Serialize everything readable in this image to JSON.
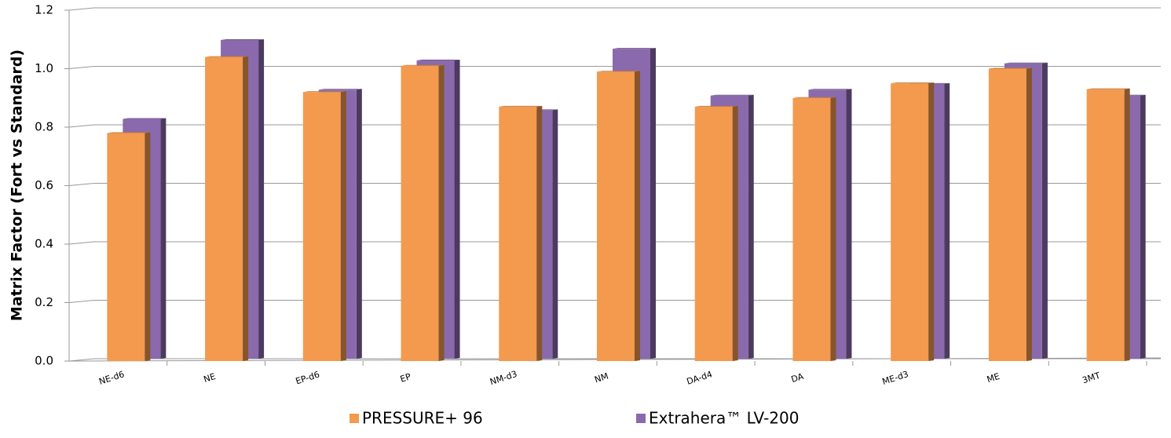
{
  "chart_data": {
    "type": "bar",
    "y_label": "Matrix Factor (Fort vs Standard)",
    "categories": [
      "NE-d6",
      "NE",
      "EP-d6",
      "EP",
      "NM-d3",
      "NM",
      "DA-d4",
      "DA",
      "ME-d3",
      "ME",
      "3MT"
    ],
    "series": [
      {
        "name": "PRESSURE+ 96",
        "color": "#f39a4f",
        "values": [
          0.78,
          1.04,
          0.92,
          1.01,
          0.87,
          0.99,
          0.87,
          0.9,
          0.95,
          1.0,
          0.93
        ]
      },
      {
        "name": "Extrahera™ LV-200",
        "color": "#8a6aac",
        "values": [
          0.82,
          1.09,
          0.92,
          1.02,
          0.85,
          1.06,
          0.9,
          0.92,
          0.94,
          1.01,
          0.9
        ]
      }
    ],
    "ylim": [
      0,
      1.2
    ],
    "yticks": [
      {
        "value": 0,
        "label": "0.0"
      },
      0.2,
      0.4,
      0.6,
      0.8,
      {
        "value": 1,
        "label": "1.0"
      },
      1.2
    ],
    "grid": true,
    "legend": "bottom"
  }
}
